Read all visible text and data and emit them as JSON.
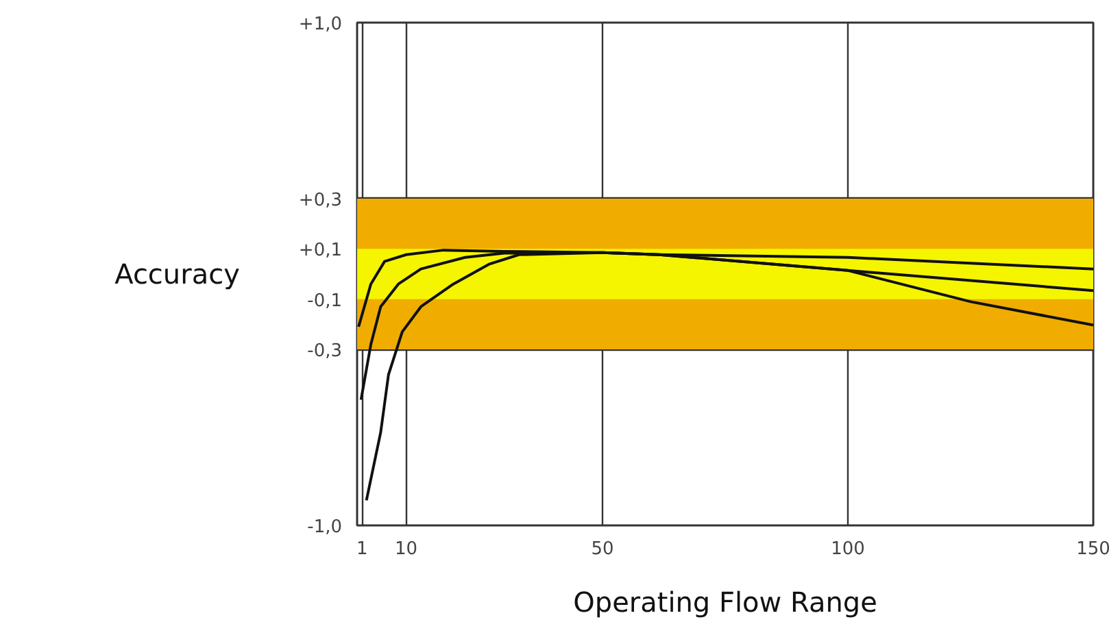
{
  "chart_data": {
    "type": "line",
    "xlabel": "Operating Flow Range",
    "ylabel": "Accuracy",
    "xlim": [
      0,
      150
    ],
    "xticks": [
      1,
      10,
      50,
      100,
      150
    ],
    "ylim": [
      -1,
      1
    ],
    "yticks": [
      {
        "value": -1,
        "label": "-1,0"
      },
      {
        "value": -0.3,
        "label": "-0,3"
      },
      {
        "value": -0.1,
        "label": "-0,1"
      },
      {
        "value": 0,
        "label": null
      },
      {
        "value": 0.1,
        "label": "+0,1"
      },
      {
        "value": 0.3,
        "label": "+0,3"
      },
      {
        "value": 1,
        "label": "+1,0"
      }
    ],
    "grid": true,
    "line_style": "solid",
    "bands": [
      {
        "axis": "y",
        "from": -0.3,
        "to": 0.3,
        "label": null,
        "color": "#f0ad00"
      },
      {
        "axis": "y",
        "from": -0.1,
        "to": 0.1,
        "label": null,
        "color": "#f5f500"
      }
    ],
    "series": [
      {
        "color": "#111111",
        "x": [
          0.3,
          2.8,
          5.6,
          10,
          17.6,
          30,
          50,
          61.5,
          100,
          125,
          150
        ],
        "values": [
          -0.21,
          -0.04,
          0.05,
          0.077,
          0.095,
          0.09,
          0.085,
          0.077,
          0.066,
          0.043,
          0.02
        ]
      },
      {
        "color": "#111111",
        "x": [
          0.8,
          2.8,
          4.8,
          8.4,
          13,
          22,
          30,
          50,
          61.5,
          100,
          125,
          150
        ],
        "values": [
          -0.5,
          -0.28,
          -0.13,
          -0.04,
          0.02,
          0.066,
          0.083,
          0.085,
          0.077,
          0.014,
          -0.026,
          -0.066
        ]
      },
      {
        "color": "#111111",
        "x": [
          1.9,
          4.8,
          6.4,
          9.2,
          13,
          19.6,
          27,
          33,
          50,
          61.5,
          100,
          125,
          150
        ],
        "values": [
          -0.9,
          -0.63,
          -0.4,
          -0.23,
          -0.13,
          -0.04,
          0.04,
          0.077,
          0.085,
          0.077,
          0.014,
          -0.11,
          -0.203
        ]
      }
    ]
  }
}
